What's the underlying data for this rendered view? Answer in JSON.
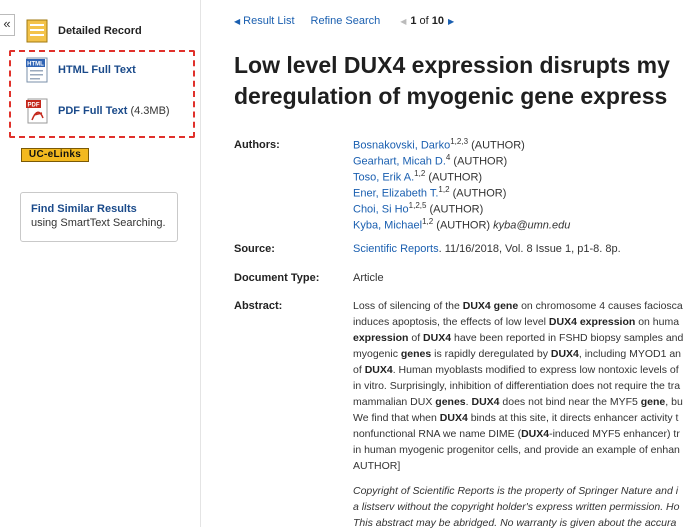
{
  "sidebar": {
    "collapse_label": "«",
    "detailed_record": "Detailed Record",
    "html_full_text": "HTML Full Text",
    "pdf_full_text": "PDF Full Text",
    "pdf_size": "(4.3MB)",
    "uc_elinks": "UC-eLinks",
    "find_similar_title": "Find Similar Results",
    "find_similar_sub": "using SmartText Searching.",
    "html_icon_text": "HTML",
    "pdf_icon_text": "PDF"
  },
  "nav": {
    "result_list": "Result List",
    "refine_search": "Refine Search",
    "position": "1",
    "of": "of",
    "total": "10"
  },
  "article": {
    "title_line1": "Low level DUX4 expression disrupts my",
    "title_line2": "deregulation of myogenic gene express",
    "labels": {
      "authors": "Authors:",
      "source": "Source:",
      "doc_type": "Document Type:",
      "abstract": "Abstract:"
    },
    "authors": [
      {
        "name": "Bosnakovski, Darko",
        "sup": "1,2,3",
        "role": "(AUTHOR)",
        "email": ""
      },
      {
        "name": "Gearhart, Micah D.",
        "sup": "4",
        "role": "(AUTHOR)",
        "email": ""
      },
      {
        "name": "Toso, Erik A.",
        "sup": "1,2",
        "role": "(AUTHOR)",
        "email": ""
      },
      {
        "name": "Ener, Elizabeth T.",
        "sup": "1,2",
        "role": "(AUTHOR)",
        "email": ""
      },
      {
        "name": "Choi, Si Ho",
        "sup": "1,2,5",
        "role": "(AUTHOR)",
        "email": ""
      },
      {
        "name": "Kyba, Michael",
        "sup": "1,2",
        "role": "(AUTHOR)",
        "email": "kyba@umn.edu"
      }
    ],
    "source_link": "Scientific Reports",
    "source_rest": ". 11/16/2018, Vol. 8 Issue 1, p1-8. 8p.",
    "doc_type": "Article",
    "abstract_lines": [
      [
        [
          "n",
          "Loss of silencing of the "
        ],
        [
          "b",
          "DUX4 gene"
        ],
        [
          "n",
          " on chromosome 4 causes faciosca"
        ]
      ],
      [
        [
          "n",
          "induces apoptosis, the effects of low level "
        ],
        [
          "b",
          "DUX4 expression"
        ],
        [
          "n",
          " on huma"
        ]
      ],
      [
        [
          "b",
          "expression"
        ],
        [
          "n",
          " of "
        ],
        [
          "b",
          "DUX4"
        ],
        [
          "n",
          " have been reported in FSHD biopsy samples and"
        ]
      ],
      [
        [
          "n",
          "myogenic "
        ],
        [
          "b",
          "genes"
        ],
        [
          "n",
          " is rapidly deregulated by "
        ],
        [
          "b",
          "DUX4"
        ],
        [
          "n",
          ", including MYOD1 an"
        ]
      ],
      [
        [
          "n",
          "of "
        ],
        [
          "b",
          "DUX4"
        ],
        [
          "n",
          ". Human myoblasts modified to express low nontoxic levels of"
        ]
      ],
      [
        [
          "n",
          "in vitro. Surprisingly, inhibition of differentiation does not require the tra"
        ]
      ],
      [
        [
          "n",
          "mammalian DUX "
        ],
        [
          "b",
          "genes"
        ],
        [
          "n",
          ". "
        ],
        [
          "b",
          "DUX4"
        ],
        [
          "n",
          " does not bind near the MYF5 "
        ],
        [
          "b",
          "gene"
        ],
        [
          "n",
          ", bu"
        ]
      ],
      [
        [
          "n",
          "We find that when "
        ],
        [
          "b",
          "DUX4"
        ],
        [
          "n",
          " binds at this site, it directs enhancer activity t"
        ]
      ],
      [
        [
          "n",
          "nonfunctional RNA we name DIME ("
        ],
        [
          "b",
          "DUX4"
        ],
        [
          "n",
          "-induced MYF5 enhancer) tr"
        ]
      ],
      [
        [
          "n",
          "in human myogenic progenitor cells, and provide an example of enhan"
        ]
      ],
      [
        [
          "n",
          "AUTHOR]"
        ]
      ]
    ],
    "copyright_lines": [
      "Copyright of Scientific Reports is the property of Springer Nature and i",
      "a listserv without the copyright holder's express written permission. Ho",
      "This abstract may be abridged. No warranty is given about the accura"
    ]
  },
  "colors": {
    "link": "#1a5fb0",
    "annotation": "#e0312b",
    "uc_elinks_bg": "#f3b91f"
  }
}
